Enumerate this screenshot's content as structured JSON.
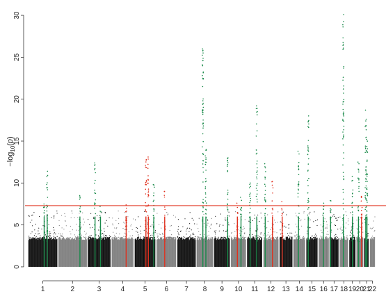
{
  "chart_data": {
    "type": "scatter",
    "subtype": "manhattan",
    "title": "",
    "xlabel": "",
    "ylabel": "-log10(p)",
    "ylabel_parts": {
      "prefix": "−log",
      "sub": "10",
      "open": "(",
      "var": "p",
      "close": ")"
    },
    "ylim": [
      -1,
      31
    ],
    "yticks": [
      0,
      5,
      10,
      15,
      20,
      25,
      30
    ],
    "grid": false,
    "significance_line": 7.3,
    "colors": {
      "chr_odd": "#111111",
      "chr_even": "#7f7f7f",
      "hit_green": "#1a8a4a",
      "hit_red": "#e0301e",
      "threshold": "#e0301e"
    },
    "chromosomes": [
      {
        "label": "1",
        "start": 0,
        "end": 248
      },
      {
        "label": "2",
        "start": 248,
        "end": 490
      },
      {
        "label": "3",
        "start": 490,
        "end": 688
      },
      {
        "label": "4",
        "start": 688,
        "end": 878
      },
      {
        "label": "5",
        "start": 878,
        "end": 1059
      },
      {
        "label": "6",
        "start": 1059,
        "end": 1230
      },
      {
        "label": "7",
        "start": 1230,
        "end": 1389
      },
      {
        "label": "8",
        "start": 1389,
        "end": 1534
      },
      {
        "label": "9",
        "start": 1534,
        "end": 1672
      },
      {
        "label": "10",
        "start": 1672,
        "end": 1806
      },
      {
        "label": "11",
        "start": 1806,
        "end": 1941
      },
      {
        "label": "12",
        "start": 1941,
        "end": 2074
      },
      {
        "label": "13",
        "start": 2074,
        "end": 2188
      },
      {
        "label": "14",
        "start": 2188,
        "end": 2295
      },
      {
        "label": "15",
        "start": 2295,
        "end": 2397
      },
      {
        "label": "16",
        "start": 2397,
        "end": 2487
      },
      {
        "label": "17",
        "start": 2487,
        "end": 2570
      },
      {
        "label": "18",
        "start": 2570,
        "end": 2650
      },
      {
        "label": "19",
        "start": 2650,
        "end": 2709
      },
      {
        "label": "20",
        "start": 2709,
        "end": 2773
      },
      {
        "label": "21",
        "start": 2773,
        "end": 2820
      },
      {
        "label": "22",
        "start": 2820,
        "end": 2871
      }
    ],
    "peaks": [
      {
        "pos": 135,
        "max": 7.5,
        "color": "green"
      },
      {
        "pos": 160,
        "max": 11.4,
        "color": "green"
      },
      {
        "pos": 430,
        "max": 8.5,
        "color": "green"
      },
      {
        "pos": 555,
        "max": 12.4,
        "color": "green"
      },
      {
        "pos": 600,
        "max": 7.2,
        "color": "green"
      },
      {
        "pos": 812,
        "max": 7.4,
        "color": "red"
      },
      {
        "pos": 975,
        "max": 12.8,
        "color": "red"
      },
      {
        "pos": 995,
        "max": 13.1,
        "color": "red"
      },
      {
        "pos": 1040,
        "max": 9.8,
        "color": "green"
      },
      {
        "pos": 1130,
        "max": 9.0,
        "color": "red"
      },
      {
        "pos": 1445,
        "max": 26.0,
        "color": "green"
      },
      {
        "pos": 1470,
        "max": 14.0,
        "color": "green"
      },
      {
        "pos": 1650,
        "max": 13.0,
        "color": "green"
      },
      {
        "pos": 1730,
        "max": 7.6,
        "color": "red"
      },
      {
        "pos": 1760,
        "max": 8.3,
        "color": "green"
      },
      {
        "pos": 1835,
        "max": 10.0,
        "color": "green"
      },
      {
        "pos": 1890,
        "max": 19.2,
        "color": "green"
      },
      {
        "pos": 1960,
        "max": 12.3,
        "color": "green"
      },
      {
        "pos": 2020,
        "max": 10.2,
        "color": "red"
      },
      {
        "pos": 2100,
        "max": 7.8,
        "color": "red"
      },
      {
        "pos": 2235,
        "max": 13.8,
        "color": "green"
      },
      {
        "pos": 2315,
        "max": 18.0,
        "color": "green"
      },
      {
        "pos": 2440,
        "max": 7.6,
        "color": "green"
      },
      {
        "pos": 2500,
        "max": 7.9,
        "color": "green"
      },
      {
        "pos": 2605,
        "max": 30.1,
        "color": "green"
      },
      {
        "pos": 2680,
        "max": 10.8,
        "color": "green"
      },
      {
        "pos": 2730,
        "max": 12.5,
        "color": "green"
      },
      {
        "pos": 2755,
        "max": 8.4,
        "color": "red"
      },
      {
        "pos": 2790,
        "max": 18.7,
        "color": "green"
      },
      {
        "pos": 2800,
        "max": 15.2,
        "color": "green"
      }
    ]
  }
}
